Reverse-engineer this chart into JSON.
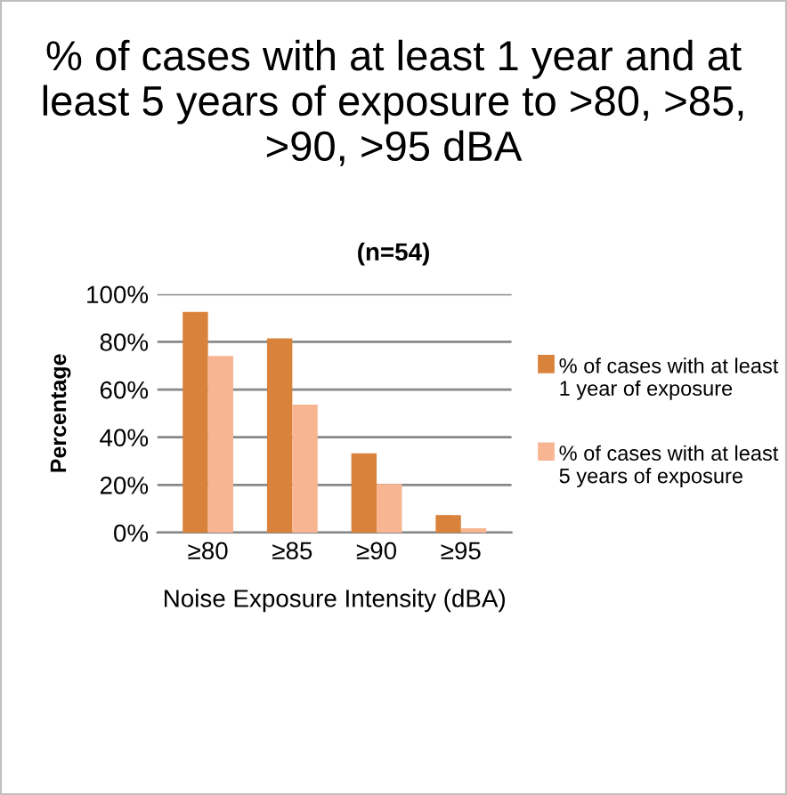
{
  "chart_data": {
    "type": "bar",
    "title": "% of cases with at least 1 year and at least 5 years of exposure to >80, >85, >90, >95 dBA",
    "subtitle": "(n=54)",
    "xlabel": "Noise Exposure Intensity (dBA)",
    "ylabel": "Percentage",
    "categories": [
      "≥80",
      "≥85",
      "≥90",
      "≥95"
    ],
    "series": [
      {
        "name": "% of cases with at least 1 year of exposure",
        "color": "#d9823b",
        "values": [
          92.6,
          81.5,
          33.3,
          7.4
        ]
      },
      {
        "name": "% of cases with at least 5 years of exposure",
        "color": "#f8b592",
        "values": [
          74.1,
          53.7,
          20.4,
          1.9
        ]
      }
    ],
    "ylim": [
      0,
      100
    ],
    "yticks": [
      {
        "value": 0,
        "label": "0%"
      },
      {
        "value": 20,
        "label": "20%"
      },
      {
        "value": 40,
        "label": "40%"
      },
      {
        "value": 60,
        "label": "60%"
      },
      {
        "value": 80,
        "label": "80%"
      },
      {
        "value": 100,
        "label": "100%"
      }
    ],
    "grid": "y",
    "legend": "right"
  }
}
